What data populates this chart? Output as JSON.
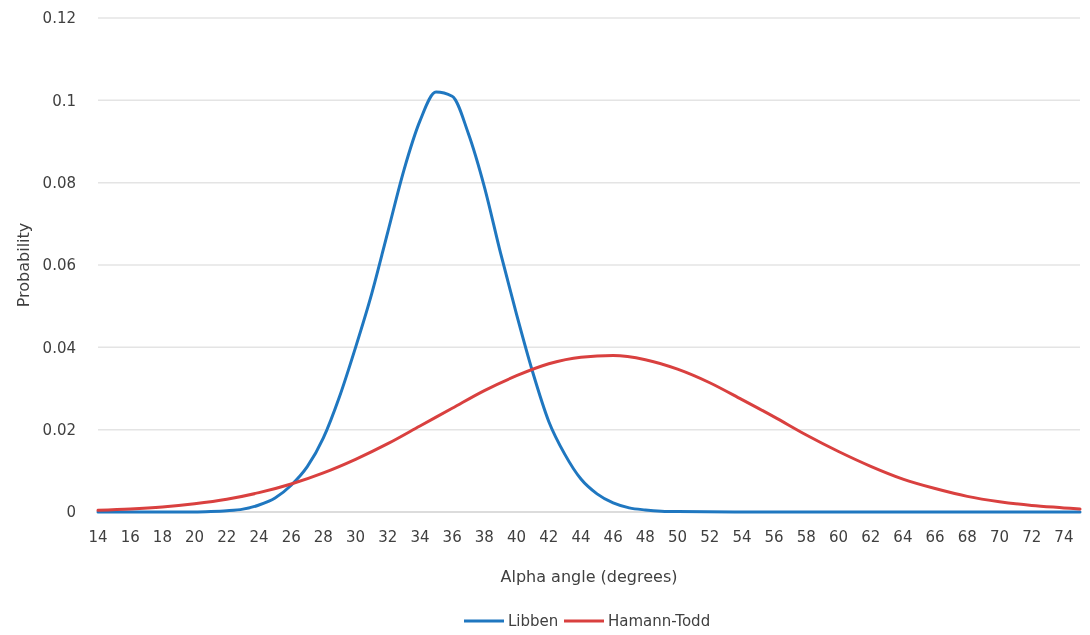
{
  "chart_data": {
    "type": "line",
    "xlabel": "Alpha angle (degrees)",
    "ylabel": "Probability",
    "xlim": [
      14,
      75
    ],
    "xticks": [
      14,
      16,
      18,
      20,
      22,
      24,
      26,
      28,
      30,
      32,
      34,
      36,
      38,
      40,
      42,
      44,
      46,
      48,
      50,
      52,
      54,
      56,
      58,
      60,
      62,
      64,
      66,
      68,
      70,
      72,
      74
    ],
    "ylim": [
      0,
      0.12
    ],
    "yticks": [
      0,
      0.02,
      0.04,
      0.06,
      0.08,
      0.1,
      0.12
    ],
    "grid": "y",
    "legend": "bottom",
    "marker": "none",
    "line_style": "solid",
    "series": [
      {
        "name": "Libben",
        "color": "#1f77c0",
        "x": [
          14,
          18,
          20,
          21,
          22,
          23,
          24,
          25,
          26,
          27,
          28,
          29,
          30,
          31,
          32,
          33,
          34,
          35,
          36,
          37,
          38,
          39,
          40,
          41,
          42,
          43,
          44,
          45,
          46,
          47,
          48,
          49,
          50,
          55,
          60,
          65,
          70,
          75
        ],
        "values": [
          0,
          0,
          0,
          0.0001,
          0.0003,
          0.0007,
          0.0017,
          0.0034,
          0.0065,
          0.011,
          0.018,
          0.028,
          0.04,
          0.053,
          0.068,
          0.083,
          0.095,
          0.102,
          0.101,
          0.092,
          0.079,
          0.063,
          0.048,
          0.034,
          0.022,
          0.014,
          0.008,
          0.0044,
          0.0022,
          0.001,
          0.0005,
          0.0002,
          0.0001,
          0,
          0,
          0,
          0,
          0
        ]
      },
      {
        "name": "Hamann-Todd",
        "color": "#d9403f",
        "x": [
          14,
          16,
          18,
          20,
          22,
          24,
          26,
          28,
          30,
          32,
          34,
          36,
          38,
          40,
          42,
          44,
          46,
          48,
          50,
          52,
          54,
          56,
          58,
          60,
          62,
          64,
          66,
          68,
          70,
          72,
          74,
          75
        ],
        "values": [
          0.0004,
          0.0007,
          0.0012,
          0.002,
          0.0031,
          0.0047,
          0.0068,
          0.0095,
          0.0128,
          0.0166,
          0.0209,
          0.0252,
          0.0295,
          0.0331,
          0.036,
          0.0376,
          0.038,
          0.037,
          0.0347,
          0.0314,
          0.0273,
          0.0231,
          0.0187,
          0.0147,
          0.0111,
          0.008,
          0.0057,
          0.0038,
          0.0025,
          0.0016,
          0.001,
          0.0007
        ]
      }
    ]
  }
}
